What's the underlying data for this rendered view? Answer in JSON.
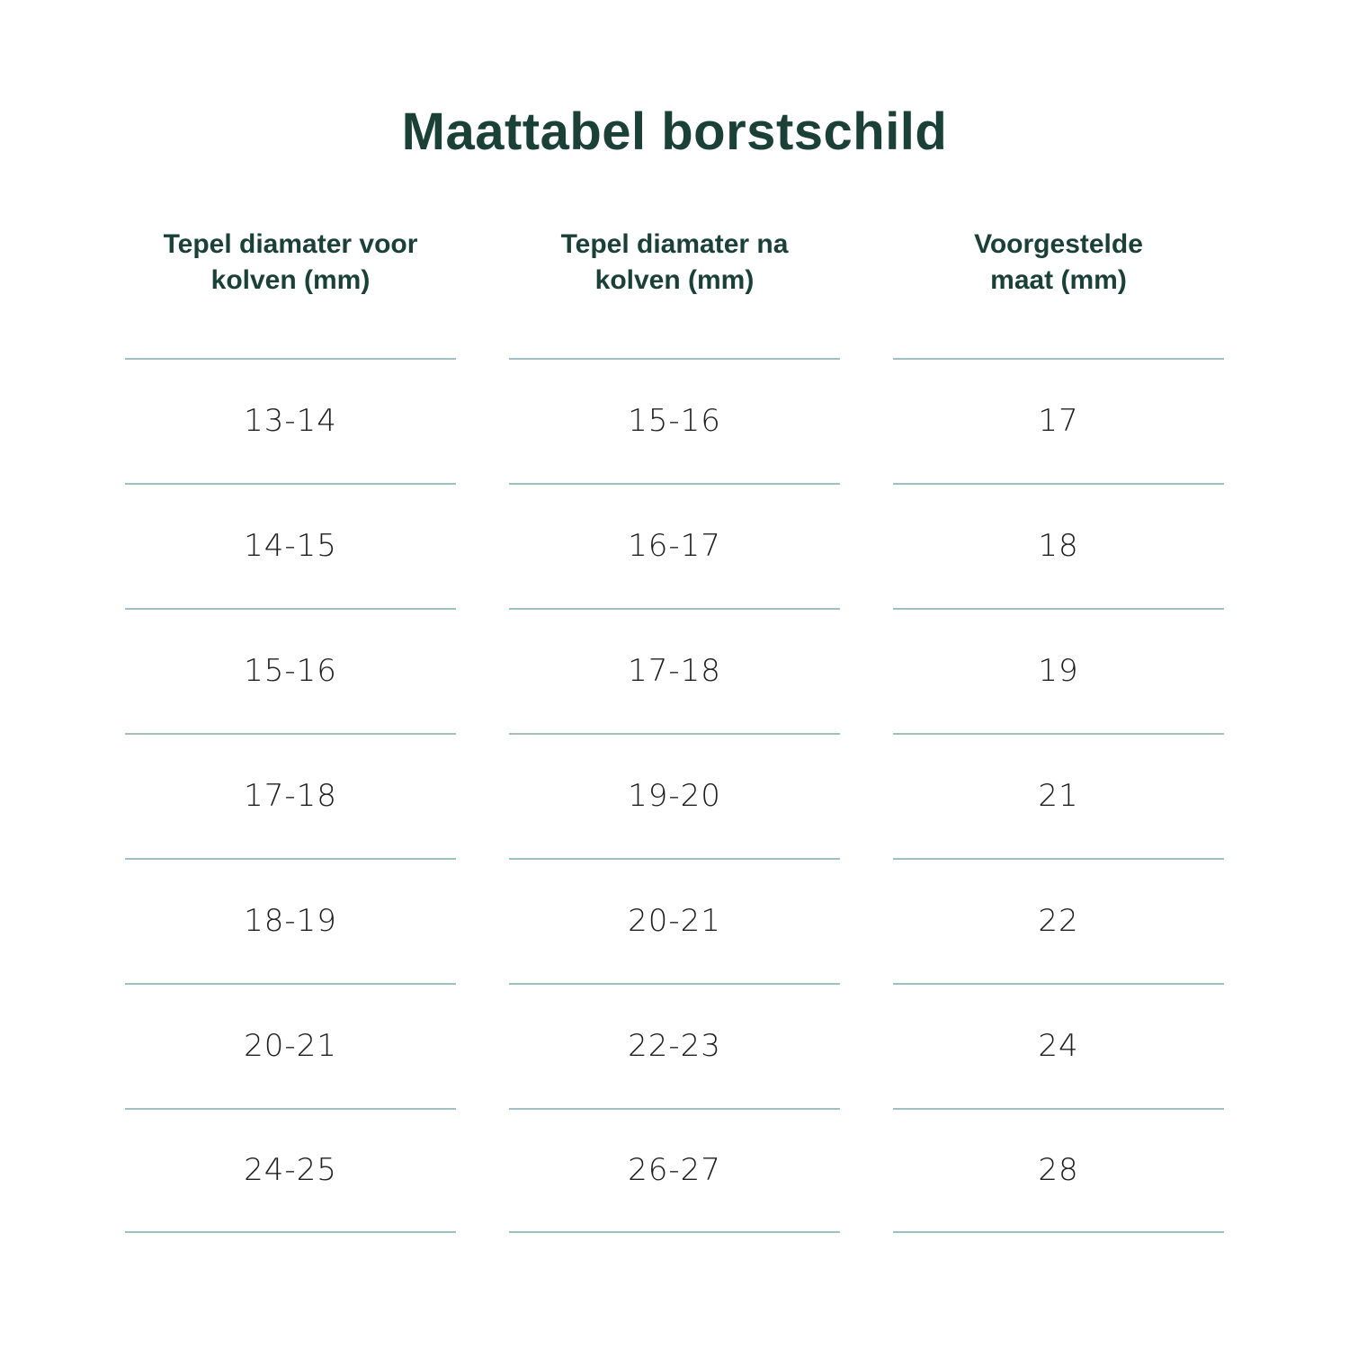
{
  "chart_data": {
    "type": "table",
    "title": "Maattabel borstschild",
    "columns": [
      "Tepel diamater voor kolven (mm)",
      "Tepel diamater na kolven (mm)",
      "Voorgestelde maat (mm)"
    ],
    "rows": [
      [
        "13-14",
        "15-16",
        "17"
      ],
      [
        "14-15",
        "16-17",
        "18"
      ],
      [
        "15-16",
        "17-18",
        "19"
      ],
      [
        "17-18",
        "19-20",
        "21"
      ],
      [
        "18-19",
        "20-21",
        "22"
      ],
      [
        "20-21",
        "22-23",
        "24"
      ],
      [
        "24-25",
        "26-27",
        "28"
      ]
    ],
    "layout": {
      "grid": "horizontal rules per column only",
      "alignment": "center"
    }
  },
  "colors": {
    "heading": "#1b4036",
    "rule": "#9fc0c3",
    "cell-text": "#1e1e1e",
    "bg": "#ffffff"
  }
}
